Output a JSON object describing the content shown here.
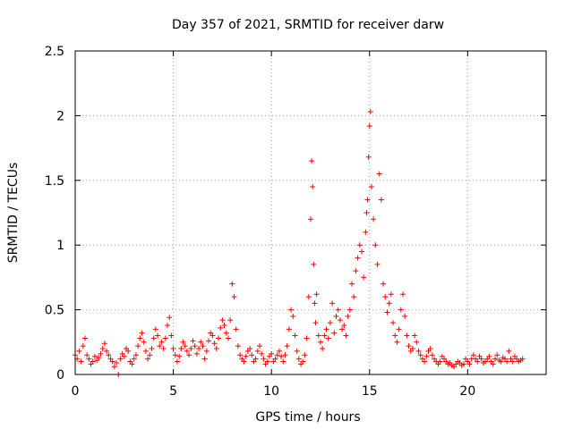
{
  "chart_data": {
    "type": "scatter",
    "title": "Day 357 of 2021, SRMTID for receiver darw",
    "xlabel": "GPS time / hours",
    "ylabel": "SRMTID / TECUs",
    "xlim": [
      0,
      24
    ],
    "ylim": [
      0,
      2.5
    ],
    "xticks": [
      0,
      5,
      10,
      15,
      20
    ],
    "xtick_labels": [
      "0",
      "5",
      "10",
      "15",
      "20"
    ],
    "yticks": [
      0,
      0.5,
      1,
      1.5,
      2,
      2.5
    ],
    "ytick_labels": [
      "0",
      "0.5",
      "1",
      "1.5",
      "2",
      "2.5"
    ],
    "grid": true,
    "marker": "+",
    "color": "#ff0000",
    "series": [
      {
        "name": "SRMTID",
        "x": [
          0.0,
          0.1,
          0.2,
          0.3,
          0.4,
          0.5,
          0.6,
          0.7,
          0.8,
          0.9,
          1.0,
          1.1,
          1.2,
          1.3,
          1.4,
          1.5,
          1.6,
          1.7,
          1.8,
          1.9,
          2.0,
          2.1,
          2.2,
          2.3,
          2.4,
          2.5,
          2.6,
          2.7,
          2.8,
          2.9,
          3.0,
          3.1,
          3.2,
          3.3,
          3.4,
          3.5,
          3.6,
          3.7,
          3.8,
          3.9,
          4.0,
          4.1,
          4.2,
          4.3,
          4.4,
          4.5,
          4.6,
          4.7,
          4.8,
          4.9,
          5.0,
          5.1,
          5.2,
          5.3,
          5.4,
          5.5,
          5.6,
          5.7,
          5.8,
          5.9,
          6.0,
          6.1,
          6.2,
          6.3,
          6.4,
          6.5,
          6.6,
          6.7,
          6.8,
          6.9,
          7.0,
          7.1,
          7.2,
          7.3,
          7.4,
          7.5,
          7.6,
          7.7,
          7.8,
          7.9,
          8.0,
          8.1,
          8.2,
          8.3,
          8.4,
          8.5,
          8.6,
          8.7,
          8.8,
          8.9,
          9.0,
          9.1,
          9.2,
          9.3,
          9.4,
          9.5,
          9.6,
          9.7,
          9.8,
          9.9,
          10.0,
          10.1,
          10.2,
          10.3,
          10.4,
          10.5,
          10.6,
          10.7,
          10.8,
          10.9,
          11.0,
          11.1,
          11.2,
          11.3,
          11.4,
          11.5,
          11.6,
          11.7,
          11.8,
          11.9,
          12.0,
          12.05,
          12.1,
          12.15,
          12.2,
          12.25,
          12.3,
          12.4,
          12.5,
          12.6,
          12.7,
          12.8,
          12.9,
          13.0,
          13.1,
          13.2,
          13.3,
          13.4,
          13.5,
          13.6,
          13.7,
          13.8,
          13.9,
          14.0,
          14.1,
          14.2,
          14.3,
          14.4,
          14.5,
          14.6,
          14.7,
          14.8,
          14.85,
          14.9,
          14.95,
          15.0,
          15.05,
          15.1,
          15.2,
          15.3,
          15.4,
          15.5,
          15.6,
          15.7,
          15.8,
          15.9,
          16.0,
          16.1,
          16.2,
          16.3,
          16.4,
          16.5,
          16.6,
          16.7,
          16.8,
          16.9,
          17.0,
          17.1,
          17.2,
          17.3,
          17.4,
          17.5,
          17.6,
          17.7,
          17.8,
          17.9,
          18.0,
          18.1,
          18.2,
          18.3,
          18.4,
          18.5,
          18.6,
          18.7,
          18.8,
          18.9,
          19.0,
          19.1,
          19.2,
          19.3,
          19.4,
          19.5,
          19.6,
          19.7,
          19.8,
          19.9,
          20.0,
          20.1,
          20.2,
          20.3,
          20.4,
          20.5,
          20.6,
          20.7,
          20.8,
          20.9,
          21.0,
          21.1,
          21.2,
          21.3,
          21.4,
          21.5,
          21.6,
          21.7,
          21.8,
          21.9,
          22.0,
          22.1,
          22.2,
          22.3,
          22.4,
          22.5,
          22.6,
          22.7,
          22.8
        ],
        "y": [
          0.15,
          0.12,
          0.18,
          0.1,
          0.22,
          0.28,
          0.15,
          0.12,
          0.08,
          0.1,
          0.14,
          0.11,
          0.13,
          0.16,
          0.2,
          0.24,
          0.18,
          0.15,
          0.12,
          0.1,
          0.06,
          0.09,
          0.0,
          0.12,
          0.16,
          0.14,
          0.2,
          0.18,
          0.1,
          0.08,
          0.12,
          0.15,
          0.22,
          0.28,
          0.32,
          0.25,
          0.18,
          0.12,
          0.15,
          0.2,
          0.28,
          0.35,
          0.3,
          0.22,
          0.25,
          0.2,
          0.28,
          0.38,
          0.44,
          0.3,
          0.2,
          0.15,
          0.1,
          0.14,
          0.2,
          0.25,
          0.22,
          0.18,
          0.15,
          0.2,
          0.26,
          0.22,
          0.16,
          0.2,
          0.25,
          0.22,
          0.12,
          0.18,
          0.26,
          0.32,
          0.3,
          0.24,
          0.2,
          0.28,
          0.36,
          0.42,
          0.38,
          0.32,
          0.28,
          0.42,
          0.7,
          0.6,
          0.35,
          0.22,
          0.15,
          0.12,
          0.1,
          0.14,
          0.18,
          0.2,
          0.15,
          0.1,
          0.12,
          0.18,
          0.22,
          0.16,
          0.12,
          0.08,
          0.1,
          0.14,
          0.16,
          0.1,
          0.12,
          0.15,
          0.18,
          0.14,
          0.1,
          0.15,
          0.22,
          0.35,
          0.5,
          0.45,
          0.3,
          0.18,
          0.12,
          0.08,
          0.1,
          0.15,
          0.28,
          0.6,
          1.2,
          1.65,
          1.45,
          0.85,
          0.55,
          0.4,
          0.62,
          0.3,
          0.25,
          0.2,
          0.3,
          0.35,
          0.28,
          0.4,
          0.55,
          0.32,
          0.45,
          0.5,
          0.42,
          0.35,
          0.38,
          0.3,
          0.45,
          0.5,
          0.7,
          0.6,
          0.8,
          0.9,
          1.0,
          0.95,
          0.75,
          1.1,
          1.25,
          1.35,
          1.68,
          1.92,
          2.03,
          1.45,
          1.2,
          1.0,
          0.85,
          1.55,
          1.35,
          0.7,
          0.6,
          0.48,
          0.55,
          0.62,
          0.4,
          0.3,
          0.25,
          0.35,
          0.5,
          0.62,
          0.45,
          0.3,
          0.22,
          0.18,
          0.2,
          0.3,
          0.25,
          0.18,
          0.15,
          0.12,
          0.1,
          0.14,
          0.18,
          0.2,
          0.15,
          0.12,
          0.1,
          0.08,
          0.1,
          0.14,
          0.12,
          0.1,
          0.08,
          0.09,
          0.07,
          0.06,
          0.08,
          0.1,
          0.09,
          0.07,
          0.08,
          0.12,
          0.1,
          0.08,
          0.12,
          0.15,
          0.12,
          0.1,
          0.14,
          0.12,
          0.09,
          0.1,
          0.12,
          0.14,
          0.1,
          0.08,
          0.12,
          0.15,
          0.11,
          0.1,
          0.13,
          0.12,
          0.1,
          0.18,
          0.12,
          0.1,
          0.14,
          0.12,
          0.1,
          0.11,
          0.12
        ]
      }
    ]
  }
}
